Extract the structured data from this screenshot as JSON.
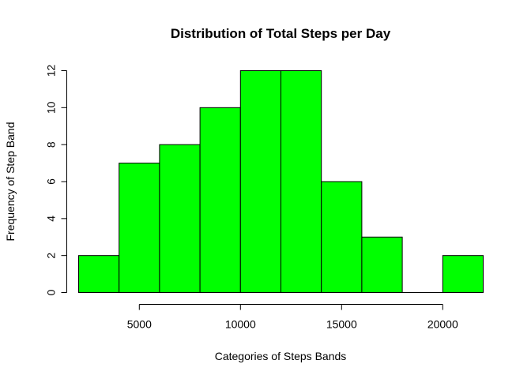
{
  "chart_data": {
    "type": "bar",
    "title": "Distribution of Total Steps per Day",
    "xlabel": "Categories of Steps Bands",
    "ylabel": "Frequency of Step Band",
    "bin_edges": [
      2000,
      4000,
      6000,
      8000,
      10000,
      12000,
      14000,
      16000,
      18000,
      20000,
      22000
    ],
    "values": [
      2,
      7,
      8,
      10,
      12,
      12,
      6,
      3,
      0,
      2
    ],
    "x_ticks": [
      5000,
      10000,
      15000,
      20000
    ],
    "y_ticks": [
      0,
      2,
      4,
      6,
      8,
      10,
      12
    ],
    "xlim": [
      2000,
      22000
    ],
    "ylim": [
      0,
      12
    ],
    "bar_color": "#00FF00",
    "bar_border_color": "#000000",
    "grid": false,
    "legend": "none"
  }
}
